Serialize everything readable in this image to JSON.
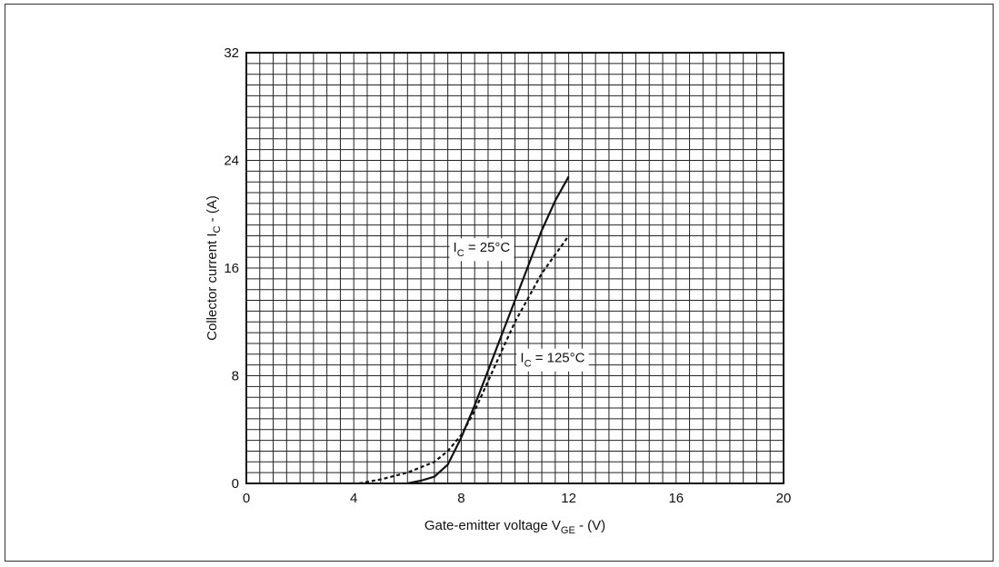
{
  "chart_data": {
    "type": "line",
    "title": "",
    "xlabel": {
      "main": "Gate-emitter voltage V",
      "sub": "GE",
      "tail": " - (V)"
    },
    "ylabel": {
      "main": "Collector current I",
      "sub": "C",
      "tail": " - (A)"
    },
    "xlim": [
      0,
      20
    ],
    "ylim": [
      0,
      32
    ],
    "x_ticks": [
      "0",
      "4",
      "8",
      "12",
      "16",
      "20"
    ],
    "y_ticks": [
      "0",
      "8",
      "16",
      "24",
      "32"
    ],
    "grid": true,
    "series": [
      {
        "name": "25°C",
        "style": "solid",
        "x": [
          6.0,
          6.5,
          7.0,
          7.5,
          8.0,
          8.5,
          9.0,
          9.5,
          10.0,
          10.5,
          11.0,
          11.5,
          12.0
        ],
        "y": [
          0,
          0.2,
          0.5,
          1.4,
          3.4,
          5.8,
          8.4,
          11.0,
          13.6,
          16.2,
          18.8,
          21.0,
          22.8
        ]
      },
      {
        "name": "125°C",
        "style": "dashed",
        "x": [
          4.2,
          5.0,
          6.0,
          7.0,
          7.5,
          8.0,
          8.5,
          9.0,
          9.5,
          10.0,
          10.5,
          11.0,
          11.5,
          12.0
        ],
        "y": [
          0,
          0.3,
          0.8,
          1.6,
          2.4,
          3.6,
          5.4,
          7.6,
          9.8,
          12.0,
          13.8,
          15.6,
          17.0,
          18.4
        ]
      }
    ],
    "annotations": [
      {
        "prefix": "I",
        "sub": "C",
        "text": " = 25°C",
        "x": 7.7,
        "y": 17.2
      },
      {
        "prefix": "I",
        "sub": "C",
        "text": " = 125°C",
        "x": 10.2,
        "y": 9.0
      }
    ],
    "colors": {
      "line": "#111111",
      "grid": "#222222",
      "background": "#ffffff"
    }
  }
}
